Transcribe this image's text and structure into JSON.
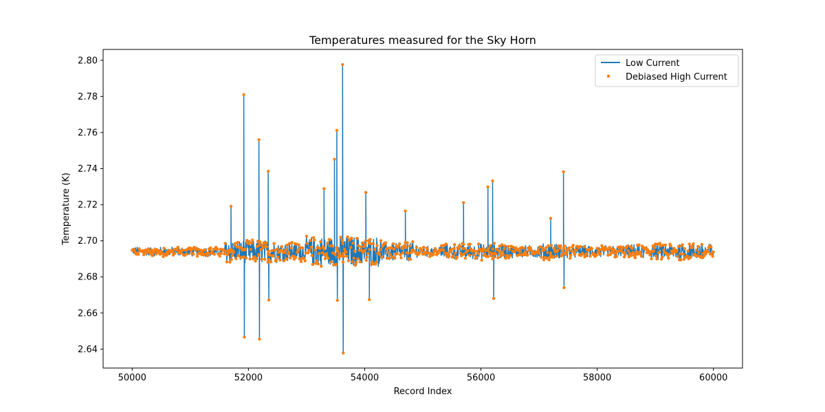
{
  "chart_data": {
    "type": "line",
    "title": "Temperatures measured for the Sky Horn",
    "xlabel": "Record Index",
    "ylabel": "Temperature (K)",
    "xlim": [
      49500,
      60500
    ],
    "ylim": [
      2.6295,
      2.806
    ],
    "xticks": [
      50000,
      52000,
      54000,
      56000,
      58000,
      60000
    ],
    "yticks": [
      2.64,
      2.66,
      2.68,
      2.7,
      2.72,
      2.74,
      2.76,
      2.78,
      2.8
    ],
    "ytick_labels": [
      "2.64",
      "2.66",
      "2.68",
      "2.70",
      "2.72",
      "2.74",
      "2.76",
      "2.78",
      "2.80"
    ],
    "xtick_labels": [
      "50000",
      "52000",
      "54000",
      "56000",
      "58000",
      "60000"
    ],
    "legend_position": "top-right",
    "grid": false,
    "x_range": [
      50000,
      60000
    ],
    "baseline": 2.694,
    "series": [
      {
        "name": "Low Current",
        "kind": "line",
        "color": "#1f77b4"
      },
      {
        "name": "Debiased High Current",
        "kind": "scatter",
        "color": "#ff7f0e"
      }
    ],
    "spikes": [
      {
        "x": 51700,
        "y": 2.719
      },
      {
        "x": 51920,
        "y": 2.781
      },
      {
        "x": 51930,
        "y": 2.647
      },
      {
        "x": 52180,
        "y": 2.756
      },
      {
        "x": 52190,
        "y": 2.646
      },
      {
        "x": 52340,
        "y": 2.738
      },
      {
        "x": 52350,
        "y": 2.667
      },
      {
        "x": 53300,
        "y": 2.729
      },
      {
        "x": 53480,
        "y": 2.745
      },
      {
        "x": 53520,
        "y": 2.761
      },
      {
        "x": 53530,
        "y": 2.667
      },
      {
        "x": 53620,
        "y": 2.798
      },
      {
        "x": 53630,
        "y": 2.638
      },
      {
        "x": 54020,
        "y": 2.727
      },
      {
        "x": 54080,
        "y": 2.667
      },
      {
        "x": 54700,
        "y": 2.716
      },
      {
        "x": 55700,
        "y": 2.721
      },
      {
        "x": 56120,
        "y": 2.73
      },
      {
        "x": 56200,
        "y": 2.733
      },
      {
        "x": 56220,
        "y": 2.668
      },
      {
        "x": 57200,
        "y": 2.712
      },
      {
        "x": 57420,
        "y": 2.738
      },
      {
        "x": 57430,
        "y": 2.674
      }
    ]
  }
}
